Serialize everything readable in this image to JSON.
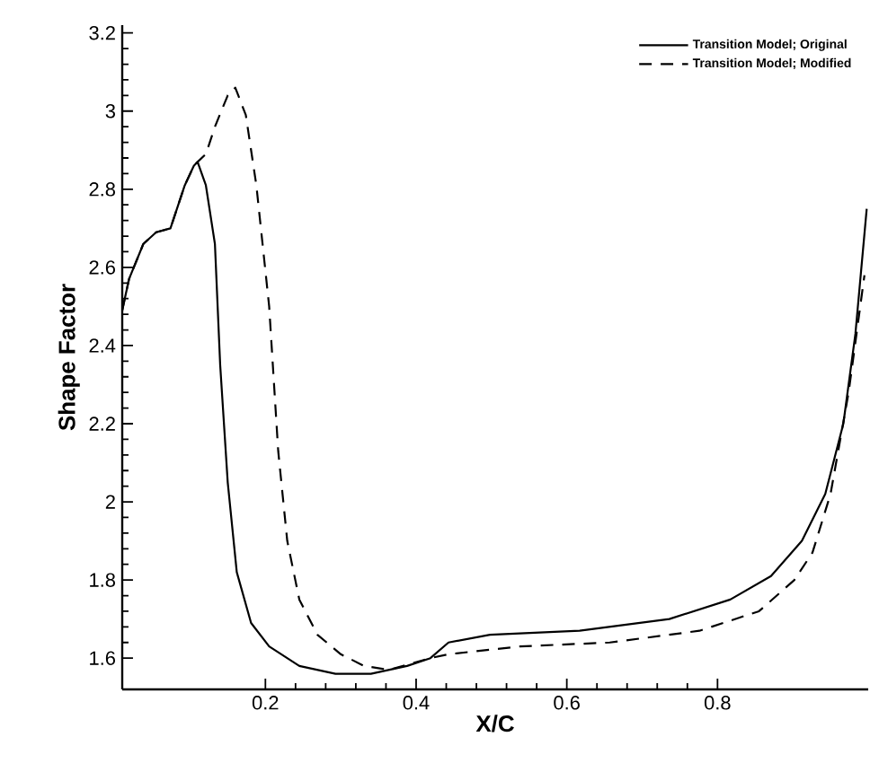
{
  "chart_data": {
    "type": "line",
    "xlabel": "X/C",
    "ylabel": "Shape Factor",
    "xlim": [
      0.01,
      1.0
    ],
    "ylim": [
      1.52,
      3.22
    ],
    "xticks": [
      0.2,
      0.4,
      0.6,
      0.8
    ],
    "yticks": [
      1.6,
      1.8,
      2,
      2.2,
      2.4,
      2.6,
      2.8,
      3,
      3.2
    ],
    "grid": false,
    "legend": "top right",
    "marker": "none",
    "series": [
      {
        "name": "Transition Model; Original",
        "color": "#000000",
        "line_style": "solid",
        "x": [
          0.01,
          0.019,
          0.038,
          0.055,
          0.074,
          0.093,
          0.105,
          0.11,
          0.121,
          0.133,
          0.14,
          0.15,
          0.162,
          0.181,
          0.205,
          0.245,
          0.293,
          0.34,
          0.388,
          0.419,
          0.443,
          0.498,
          0.617,
          0.736,
          0.817,
          0.871,
          0.912,
          0.943,
          0.967,
          0.983,
          0.998
        ],
        "values": [
          2.49,
          2.57,
          2.66,
          2.69,
          2.7,
          2.81,
          2.86,
          2.87,
          2.81,
          2.66,
          2.35,
          2.05,
          1.82,
          1.69,
          1.63,
          1.58,
          1.56,
          1.56,
          1.58,
          1.6,
          1.64,
          1.66,
          1.67,
          1.7,
          1.75,
          1.81,
          1.9,
          2.02,
          2.2,
          2.43,
          2.75
        ]
      },
      {
        "name": "Transition Model; Modified",
        "color": "#000000",
        "line_style": "dashed",
        "x": [
          0.01,
          0.019,
          0.038,
          0.055,
          0.074,
          0.093,
          0.105,
          0.11,
          0.121,
          0.133,
          0.15,
          0.16,
          0.174,
          0.188,
          0.205,
          0.217,
          0.229,
          0.245,
          0.269,
          0.3,
          0.331,
          0.364,
          0.419,
          0.443,
          0.538,
          0.657,
          0.776,
          0.855,
          0.902,
          0.926,
          0.95,
          0.974,
          0.995
        ],
        "values": [
          2.49,
          2.57,
          2.66,
          2.69,
          2.7,
          2.81,
          2.86,
          2.87,
          2.89,
          2.96,
          3.04,
          3.06,
          2.99,
          2.81,
          2.5,
          2.13,
          1.9,
          1.75,
          1.66,
          1.61,
          1.58,
          1.57,
          1.6,
          1.61,
          1.63,
          1.64,
          1.67,
          1.72,
          1.8,
          1.87,
          2.02,
          2.28,
          2.58
        ]
      }
    ]
  }
}
